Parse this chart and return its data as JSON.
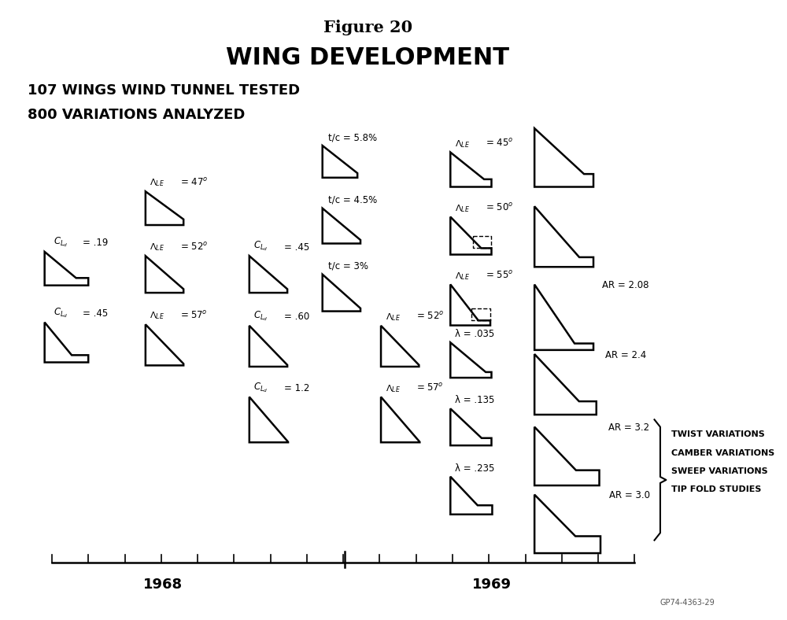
{
  "title_line1": "Figure 20",
  "title_line2": "WING DEVELOPMENT",
  "subtitle1": "107 WINGS WIND TUNNEL TESTED",
  "subtitle2": "800 VARIATIONS ANALYZED",
  "bg_color": "#ffffff",
  "year1": "1968",
  "year2": "1969",
  "footer": "GP74-4363-29",
  "brace_text": [
    "TWIST VARIATIONS",
    "CAMBER VARIATIONS",
    "SWEEP VARIATIONS",
    "TIP FOLD STUDIES"
  ]
}
